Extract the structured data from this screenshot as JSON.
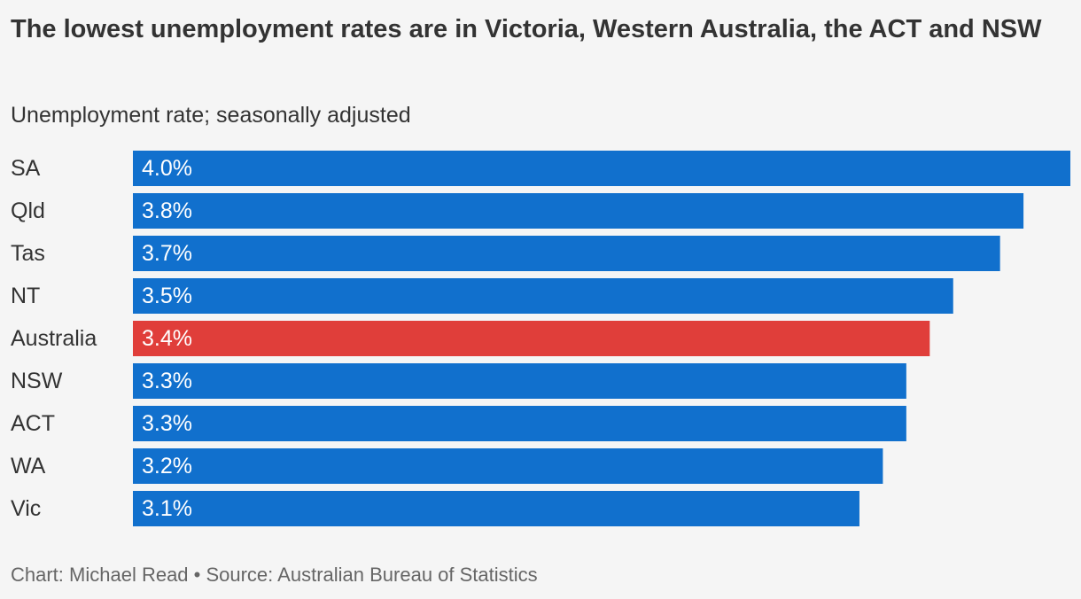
{
  "header": {
    "title": "The lowest unemployment rates are in Victoria, Western Australia, the ACT and NSW",
    "subtitle": "Unemployment rate; seasonally adjusted"
  },
  "footer": {
    "credit": "Chart: Michael Read • Source: Australian Bureau of Statistics"
  },
  "colors": {
    "bar": "#1170cd",
    "highlight": "#e03e3a",
    "background": "#f5f5f5",
    "text": "#333333"
  },
  "chart_data": {
    "type": "bar",
    "orientation": "horizontal",
    "title": "The lowest unemployment rates are in Victoria, Western Australia, the ACT and NSW",
    "subtitle": "Unemployment rate; seasonally adjusted",
    "categories": [
      "SA",
      "Qld",
      "Tas",
      "NT",
      "Australia",
      "NSW",
      "ACT",
      "WA",
      "Vic"
    ],
    "values": [
      4.0,
      3.8,
      3.7,
      3.5,
      3.4,
      3.3,
      3.3,
      3.2,
      3.1
    ],
    "value_labels": [
      "4.0%",
      "3.8%",
      "3.7%",
      "3.5%",
      "3.4%",
      "3.3%",
      "3.3%",
      "3.2%",
      "3.1%"
    ],
    "highlight": [
      "Australia"
    ],
    "xlim": [
      0,
      4.0
    ],
    "grid": false,
    "legend": "none"
  }
}
